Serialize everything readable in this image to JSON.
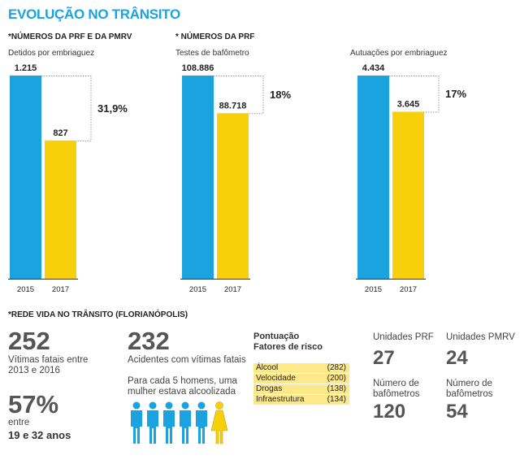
{
  "title": "EVOLUÇÃO NO TRÂNSITO",
  "colors": {
    "blue": "#1ba3e0",
    "yellow": "#f7cf0a",
    "accent": "#1ba3e0",
    "risk_bg": "#fde98a"
  },
  "sources": {
    "left": "*NÚMEROS DA PRF E DA PMRV",
    "middle": "* NÚMEROS DA PRF",
    "bottom": "*REDE VIDA NO TRÂNSITO (FLORIANÓPOLIS)"
  },
  "chart_data": [
    {
      "type": "bar",
      "title": "Detidos por embriaguez",
      "categories": [
        "2015",
        "2017"
      ],
      "values": [
        1215,
        827
      ],
      "value_labels": [
        "1.215",
        "827"
      ],
      "change": "31,9%",
      "ylim": [
        0,
        1215
      ]
    },
    {
      "type": "bar",
      "title": "Testes de bafômetro",
      "categories": [
        "2015",
        "2017"
      ],
      "values": [
        108886,
        88718
      ],
      "value_labels": [
        "108.886",
        "88.718"
      ],
      "change": "18%",
      "ylim": [
        0,
        108886
      ]
    },
    {
      "type": "bar",
      "title": "Autuações por embriaguez",
      "categories": [
        "2015",
        "2017"
      ],
      "values": [
        4434,
        3645
      ],
      "value_labels": [
        "4.434",
        "3.645"
      ],
      "change": "17%",
      "ylim": [
        0,
        4434
      ]
    }
  ],
  "stats": {
    "victims_number": "252",
    "victims_text_1": "Vítimas fatais entre",
    "victims_text_2": "2013 e 2016",
    "percent_number": "57%",
    "percent_text_1": "entre",
    "percent_text_2": "19 e 32 anos",
    "accidents_number": "232",
    "accidents_text": "Acidentes com vítimas fatais",
    "ratio_text_1": "Para cada 5 homens, uma",
    "ratio_text_2": "mulher estava alcoolizada",
    "ratio_icons": {
      "men": 5,
      "women": 1
    }
  },
  "risk": {
    "heading_1": "Pontuação",
    "heading_2": "Fatores de risco",
    "rows": [
      {
        "label": "Álcool",
        "value": "(282)"
      },
      {
        "label": "Velocidade",
        "value": "(200)"
      },
      {
        "label": "Drogas",
        "value": "(138)"
      },
      {
        "label": "Infraestrutura",
        "value": "(134)"
      }
    ]
  },
  "units": {
    "prf_label": "Unidades PRF",
    "prf_value": "27",
    "pmrv_label": "Unidades PMRV",
    "pmrv_value": "24",
    "bafo_label_1": "Número de",
    "bafo_label_2": "bafômetros",
    "prf_bafo_value": "120",
    "pmrv_bafo_value": "54"
  }
}
